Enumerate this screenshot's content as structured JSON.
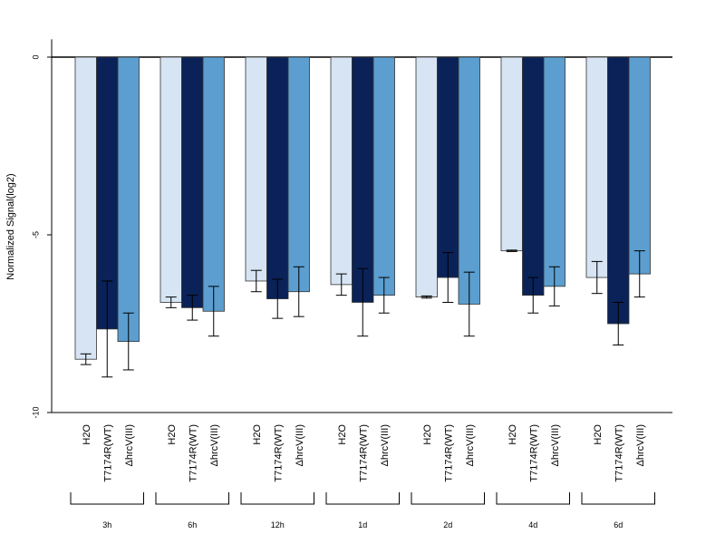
{
  "chart_data": {
    "type": "bar",
    "title": "",
    "xlabel": "",
    "ylabel": "Normalized Signal(log2)",
    "ylim": [
      -10,
      0.5
    ],
    "yticks": [
      0,
      -5,
      -10
    ],
    "grid": false,
    "legend": "none",
    "groups": [
      "3h",
      "6h",
      "12h",
      "1d",
      "2d",
      "4d",
      "6d"
    ],
    "series": [
      {
        "name": "H2O",
        "color": "#d6e4f3",
        "values": [
          -8.5,
          -6.9,
          -6.3,
          -6.4,
          -6.75,
          -5.45,
          -6.2
        ],
        "errors": [
          0.15,
          0.15,
          0.3,
          0.3,
          0.03,
          0.02,
          0.45
        ]
      },
      {
        "name": "T7174R(WT)",
        "color": "#0a2258",
        "values": [
          -7.65,
          -7.05,
          -6.8,
          -6.9,
          -6.2,
          -6.7,
          -7.5
        ],
        "errors": [
          1.35,
          0.35,
          0.55,
          0.95,
          0.7,
          0.5,
          0.6
        ]
      },
      {
        "name": "ΔhrcV(III)",
        "color": "#5b9ecf",
        "values": [
          -8.0,
          -7.15,
          -6.6,
          -6.7,
          -6.95,
          -6.45,
          -6.1
        ],
        "errors": [
          0.8,
          0.7,
          0.7,
          0.5,
          0.9,
          0.55,
          0.65
        ]
      }
    ]
  }
}
